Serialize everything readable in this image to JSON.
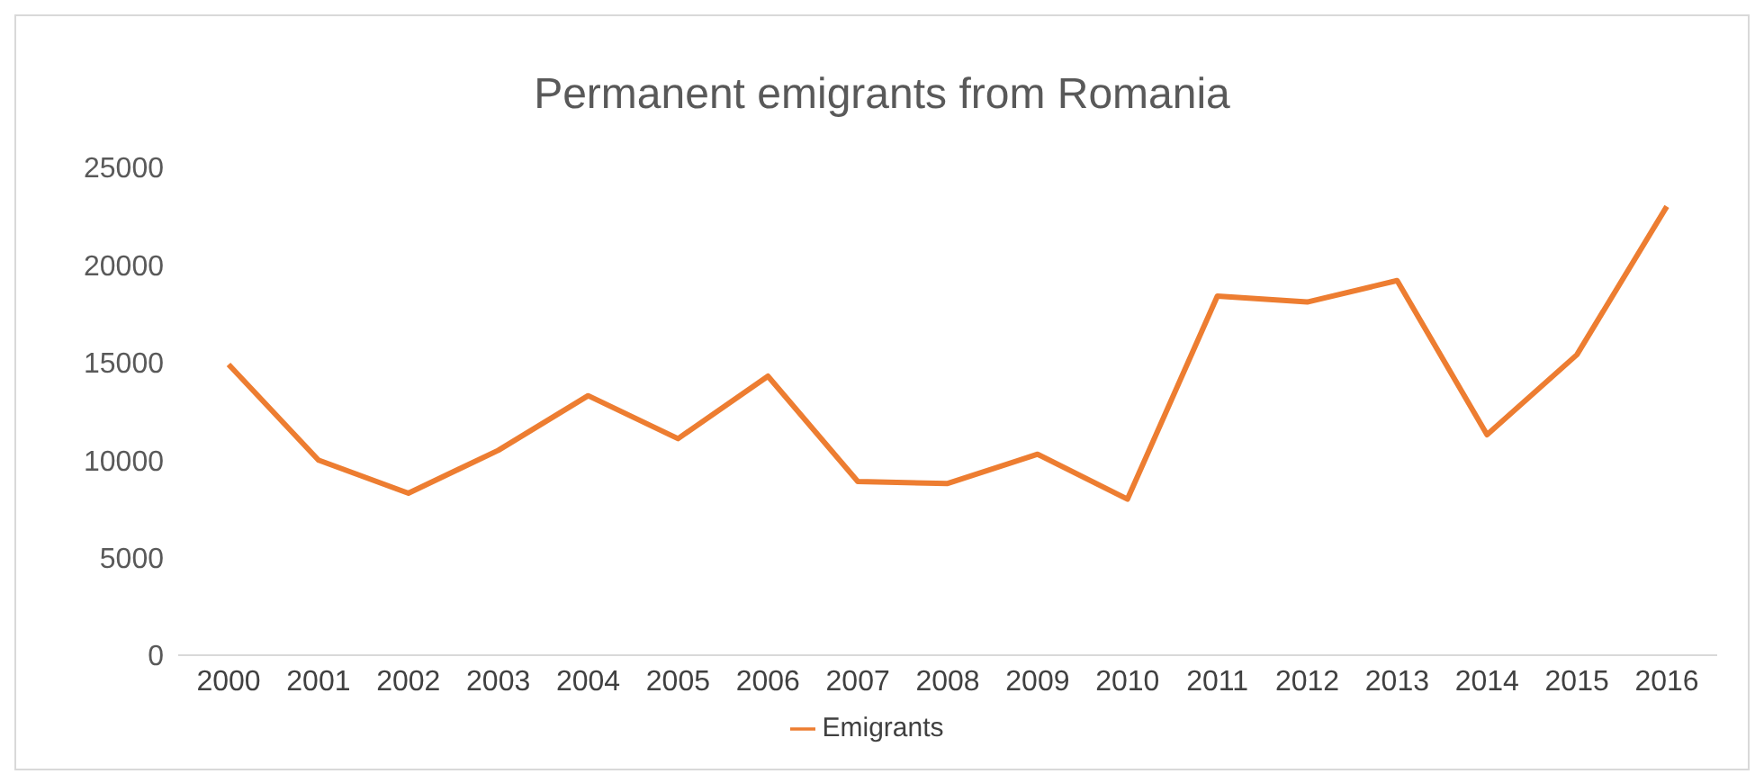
{
  "chart_data": {
    "type": "line",
    "title": "Permanent emigrants from Romania",
    "categories": [
      "2000",
      "2001",
      "2002",
      "2003",
      "2004",
      "2005",
      "2006",
      "2007",
      "2008",
      "2009",
      "2010",
      "2011",
      "2012",
      "2013",
      "2014",
      "2015",
      "2016"
    ],
    "series": [
      {
        "name": "Emigrants",
        "color": "#ed7d31",
        "values": [
          14900,
          10000,
          8300,
          10500,
          13300,
          11100,
          14300,
          8900,
          8800,
          10300,
          8000,
          18400,
          18100,
          19200,
          11300,
          15400,
          23000
        ]
      }
    ],
    "ylim": [
      0,
      25000
    ],
    "yticks": [
      0,
      5000,
      10000,
      15000,
      20000,
      25000
    ],
    "grid": false,
    "legend": "bottom",
    "marker": "none",
    "line_style": "solid"
  }
}
